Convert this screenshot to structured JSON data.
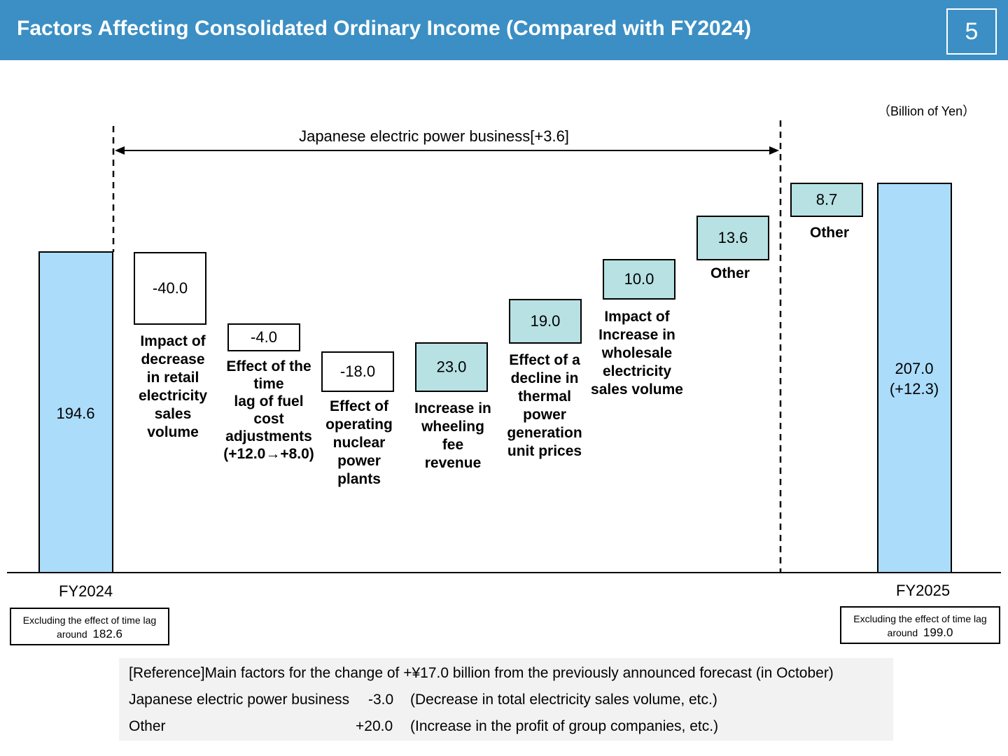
{
  "header": {
    "title": "Factors Affecting Consolidated Ordinary Income (Compared with FY2024)",
    "page_number": "5"
  },
  "unit_label": "（Billion of Yen）",
  "segment_label": "Japanese electric power business[+3.6]",
  "chart_data": {
    "type": "bar",
    "subtype": "waterfall",
    "title": "Factors Affecting Consolidated Ordinary Income (Compared with FY2024)",
    "unit": "Billion of Yen",
    "baseline": {
      "label": "FY2024",
      "value": 194.6,
      "value_label": "194.6"
    },
    "steps": [
      {
        "id": "retail",
        "value": -40.0,
        "value_label": "-40.0",
        "label_lines": [
          "Impact of",
          "decrease",
          "in retail",
          "electricity",
          "sales",
          "volume"
        ]
      },
      {
        "id": "timelag",
        "value": -4.0,
        "value_label": "-4.0",
        "label_lines": [
          "Effect of the",
          "time",
          "lag of fuel",
          "cost",
          "adjustments",
          "(+12.0→+8.0)"
        ]
      },
      {
        "id": "nuclear",
        "value": -18.0,
        "value_label": "-18.0",
        "label_lines": [
          "Effect of",
          "operating",
          "nuclear",
          "power",
          "plants"
        ]
      },
      {
        "id": "wheeling",
        "value": 23.0,
        "value_label": "23.0",
        "label_lines": [
          "Increase in",
          "wheeling",
          "fee",
          "revenue"
        ]
      },
      {
        "id": "thermal",
        "value": 19.0,
        "value_label": "19.0",
        "label_lines": [
          "Effect of a",
          "decline in",
          "thermal",
          "power",
          "generation",
          "unit prices"
        ]
      },
      {
        "id": "wholesale",
        "value": 10.0,
        "value_label": "10.0",
        "label_lines": [
          "Impact of",
          "Increase in",
          "wholesale",
          "electricity",
          "sales volume"
        ]
      },
      {
        "id": "other1",
        "value": 13.6,
        "value_label": "13.6",
        "label_lines": [
          "Other"
        ]
      },
      {
        "id": "other2",
        "value": 8.7,
        "value_label": "8.7",
        "label_lines": [
          "Other"
        ]
      }
    ],
    "final": {
      "label": "FY2025",
      "value": 207.0,
      "value_label": "207.0",
      "change_label": "(+12.3)"
    },
    "colors": {
      "total_bar": "#abdcfa",
      "increase": "#b7e1e3",
      "decrease": "#ffffff",
      "outline": "#000000"
    }
  },
  "notes": {
    "fy2024": {
      "line1": "Excluding the effect of time lag",
      "prefix": "around",
      "value": "182.6"
    },
    "fy2025": {
      "line1": "Excluding the effect of time lag",
      "prefix": "around",
      "value": "199.0"
    }
  },
  "reference": {
    "title": "[Reference]Main factors for the change of +¥17.0 billion from the previously announced forecast (in October)",
    "rows": [
      {
        "label": "Japanese electric power business",
        "value": "-3.0",
        "note": "(Decrease in total electricity sales volume, etc.)"
      },
      {
        "label": "Other",
        "value": "+20.0",
        "note": "(Increase in the profit of group companies, etc.)"
      }
    ]
  }
}
